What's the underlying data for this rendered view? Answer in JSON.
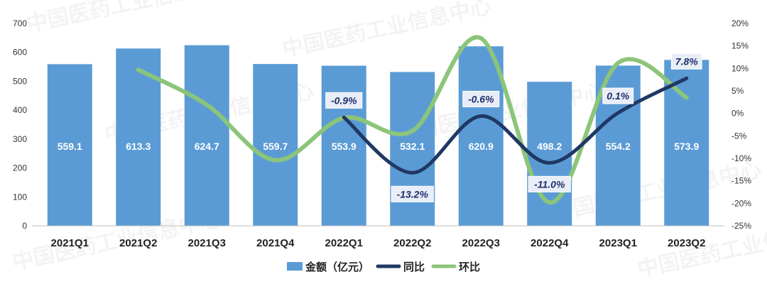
{
  "chart_data": {
    "type": "bar",
    "categories": [
      "2021Q1",
      "2021Q2",
      "2021Q3",
      "2021Q4",
      "2022Q1",
      "2022Q2",
      "2022Q3",
      "2022Q4",
      "2023Q1",
      "2023Q2"
    ],
    "series": [
      {
        "name": "金额（亿元）",
        "type": "bar",
        "axis": "left",
        "color": "#5b9bd5",
        "values": [
          559.1,
          613.3,
          624.7,
          559.7,
          553.9,
          532.1,
          620.9,
          498.2,
          554.2,
          573.9
        ],
        "labels": [
          "559.1",
          "613.3",
          "624.7",
          "559.7",
          "553.9",
          "532.1",
          "620.9",
          "498.2",
          "554.2",
          "573.9"
        ]
      },
      {
        "name": "同比",
        "type": "line",
        "axis": "right",
        "color": "#203864",
        "values": [
          null,
          null,
          null,
          null,
          -0.9,
          -13.2,
          -0.6,
          -11.0,
          0.1,
          7.8
        ],
        "labels": [
          "",
          "",
          "",
          "",
          "-0.9%",
          "-13.2%",
          "-0.6%",
          "-11.0%",
          "0.1%",
          "7.8%"
        ]
      },
      {
        "name": "环比",
        "type": "line",
        "axis": "right",
        "color": "#8cc57a",
        "values": [
          null,
          9.7,
          1.9,
          -10.4,
          -1.0,
          -3.9,
          16.7,
          -19.8,
          11.2,
          3.5
        ]
      }
    ],
    "y_left": {
      "ylim": [
        0,
        700
      ],
      "ticks": [
        "0",
        "100",
        "200",
        "300",
        "400",
        "500",
        "600",
        "700"
      ]
    },
    "y_right": {
      "ylim": [
        -25,
        20
      ],
      "ticks": [
        "-25%",
        "-20%",
        "-15%",
        "-10%",
        "-5%",
        "0%",
        "5%",
        "10%",
        "15%",
        "20%"
      ]
    },
    "legend": {
      "position": "bottom",
      "items": [
        "金额（亿元）",
        "同比",
        "环比"
      ]
    },
    "grid": false,
    "watermark": "中国医药工业信息中心"
  }
}
